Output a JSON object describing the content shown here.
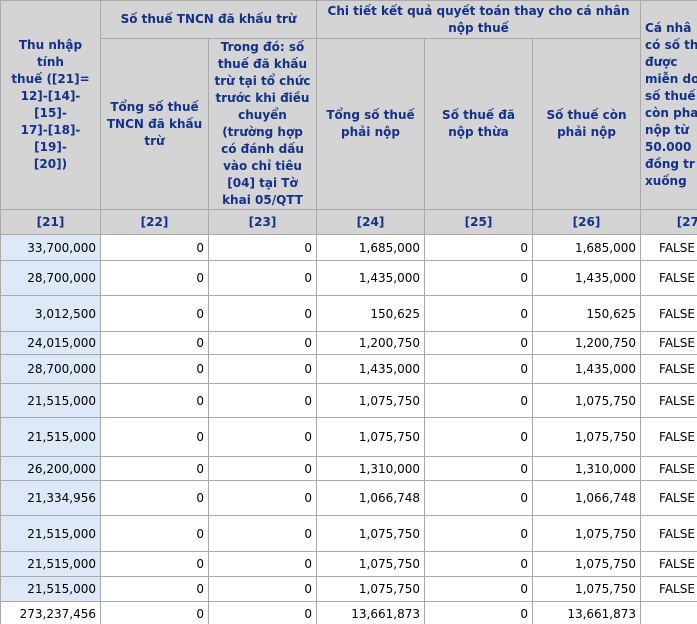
{
  "table": {
    "header": {
      "c21": "Thu nhập tính\nthuế ([21]=\n12]-[14]-[15]-\n17]-[18]-[19]-\n[20])",
      "group1": "Số thuế TNCN đã khấu trừ",
      "group2": "Chi tiết kết quả quyết toán thay cho cá nhân nộp thuế",
      "c22": "Tổng số thuế TNCN đã khấu trừ",
      "c23": "Trong đó: số thuế đã khấu trừ tại tổ chức trước khi điều chuyển (trường hợp có đánh dấu vào chỉ tiêu [04] tại Tờ khai 05/QTT",
      "c24": "Tổng số thuế phải nộp",
      "c25": "Số thuế đã nộp thừa",
      "c26": "Số thuế còn phải nộp",
      "c27": "Cá nhâ\ncó số th\nđược\nmiễn do\nsố thuế\ncòn pha\nnộp từ\n50.000\nđồng tr\nxuống"
    },
    "codes": [
      "[21]",
      "[22]",
      "[23]",
      "[24]",
      "[25]",
      "[26]",
      "[27]"
    ],
    "rows": [
      [
        "33,700,000",
        "0",
        "0",
        "1,685,000",
        "0",
        "1,685,000",
        "FALSE"
      ],
      [
        "28,700,000",
        "0",
        "0",
        "1,435,000",
        "0",
        "1,435,000",
        "FALSE"
      ],
      [
        "3,012,500",
        "0",
        "0",
        "150,625",
        "0",
        "150,625",
        "FALSE"
      ],
      [
        "24,015,000",
        "0",
        "0",
        "1,200,750",
        "0",
        "1,200,750",
        "FALSE"
      ],
      [
        "28,700,000",
        "0",
        "0",
        "1,435,000",
        "0",
        "1,435,000",
        "FALSE"
      ],
      [
        "21,515,000",
        "0",
        "0",
        "1,075,750",
        "0",
        "1,075,750",
        "FALSE"
      ],
      [
        "21,515,000",
        "0",
        "0",
        "1,075,750",
        "0",
        "1,075,750",
        "FALSE"
      ],
      [
        "26,200,000",
        "0",
        "0",
        "1,310,000",
        "0",
        "1,310,000",
        "FALSE"
      ],
      [
        "21,334,956",
        "0",
        "0",
        "1,066,748",
        "0",
        "1,066,748",
        "FALSE"
      ],
      [
        "21,515,000",
        "0",
        "0",
        "1,075,750",
        "0",
        "1,075,750",
        "FALSE"
      ],
      [
        "21,515,000",
        "0",
        "0",
        "1,075,750",
        "0",
        "1,075,750",
        "FALSE"
      ],
      [
        "21,515,000",
        "0",
        "0",
        "1,075,750",
        "0",
        "1,075,750",
        "FALSE"
      ]
    ],
    "total": [
      "273,237,456",
      "0",
      "0",
      "13,661,873",
      "0",
      "13,661,873"
    ]
  }
}
